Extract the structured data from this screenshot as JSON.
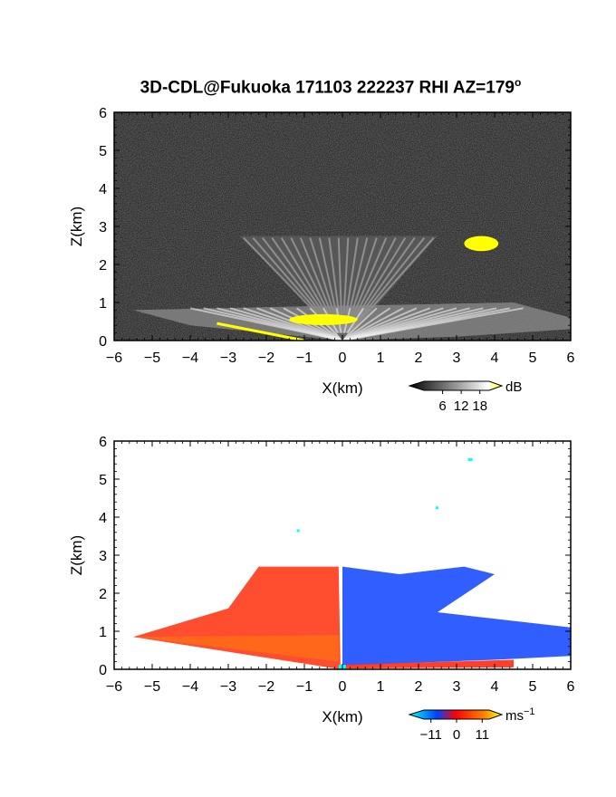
{
  "title": "3D-CDL@Fukuoka 171103 222237 RHI AZ=179",
  "title_superscript": "o",
  "chart_data": [
    {
      "type": "heatmap",
      "name": "reflectivity",
      "xlabel": "X(km)",
      "ylabel": "Z(km)",
      "xlim": [
        -6,
        6
      ],
      "ylim": [
        0,
        6
      ],
      "x_ticks": [
        "-6",
        "-5",
        "-4",
        "-3",
        "-2",
        "-1",
        "0",
        "1",
        "2",
        "3",
        "4",
        "5",
        "6"
      ],
      "y_ticks": [
        "0",
        "1",
        "2",
        "3",
        "4",
        "5",
        "6"
      ],
      "colorbar": {
        "unit": "dB",
        "ticks": [
          "6",
          "12",
          "18"
        ],
        "range": [
          0,
          21
        ]
      },
      "features": {
        "high_echo_region_x": [
          -3.2,
          1.8
        ],
        "high_echo_region_z": [
          0.3,
          0.8
        ],
        "cloud_echo_x": [
          3.2,
          4.1
        ],
        "cloud_echo_z": [
          2.4,
          2.7
        ]
      }
    },
    {
      "type": "heatmap",
      "name": "doppler-velocity",
      "xlabel": "X(km)",
      "ylabel": "Z(km)",
      "xlim": [
        -6,
        6
      ],
      "ylim": [
        0,
        6
      ],
      "x_ticks": [
        "-6",
        "-5",
        "-4",
        "-3",
        "-2",
        "-1",
        "0",
        "1",
        "2",
        "3",
        "4",
        "5",
        "6"
      ],
      "y_ticks": [
        "0",
        "1",
        "2",
        "3",
        "4",
        "5",
        "6"
      ],
      "colorbar": {
        "unit": "ms",
        "unit_superscript": "−1",
        "ticks": [
          "−11",
          "0",
          "11"
        ],
        "range": [
          -14,
          14
        ]
      },
      "features": {
        "positive_velocity_x": [
          -5.5,
          -0.1
        ],
        "negative_velocity_x": [
          0,
          6
        ],
        "max_height_km": 2.7
      }
    }
  ]
}
